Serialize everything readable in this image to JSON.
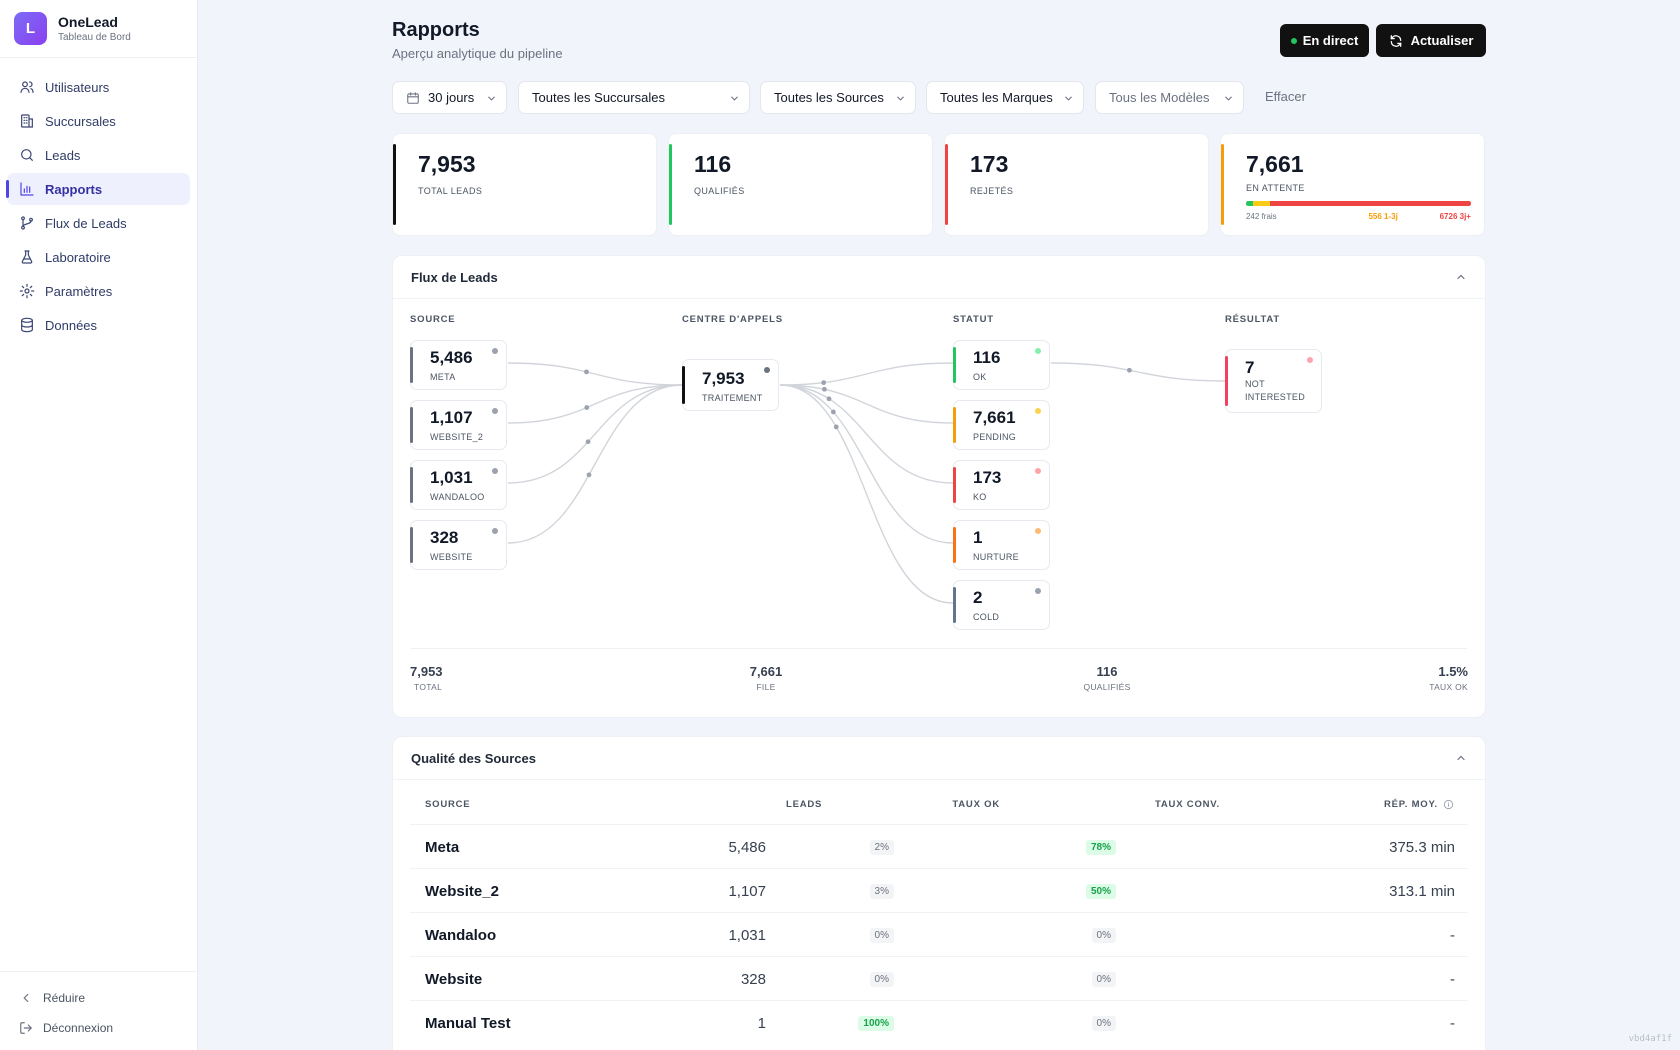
{
  "brand": {
    "initial": "L",
    "name": "OneLead",
    "subtitle": "Tableau de Bord"
  },
  "sidebar": {
    "items": [
      {
        "label": "Utilisateurs",
        "icon": "users-icon"
      },
      {
        "label": "Succursales",
        "icon": "building-icon"
      },
      {
        "label": "Leads",
        "icon": "search-icon"
      },
      {
        "label": "Rapports",
        "icon": "bar-chart-icon",
        "active": true
      },
      {
        "label": "Flux de Leads",
        "icon": "git-branch-icon"
      },
      {
        "label": "Laboratoire",
        "icon": "flask-icon"
      },
      {
        "label": "Paramètres",
        "icon": "gear-icon"
      },
      {
        "label": "Données",
        "icon": "database-icon"
      }
    ],
    "collapse_label": "Réduire",
    "logout_label": "Déconnexion"
  },
  "header": {
    "title": "Rapports",
    "subtitle": "Aperçu analytique du pipeline",
    "live_label": "En direct",
    "refresh_label": "Actualiser"
  },
  "filters": {
    "period": "30 jours",
    "branches": "Toutes les Succursales",
    "sources": "Toutes les Sources",
    "brands": "Toutes les Marques",
    "models": "Tous les Modèles",
    "clear": "Effacer"
  },
  "kpis": [
    {
      "value": "7,953",
      "label": "TOTAL LEADS",
      "color": "#111111"
    },
    {
      "value": "116",
      "label": "QUALIFIÉS",
      "color": "#22c55e"
    },
    {
      "value": "173",
      "label": "REJETÉS",
      "color": "#ef4444"
    },
    {
      "value": "7,661",
      "label": "EN ATTENTE",
      "color": "#f59e0b",
      "breakdown": {
        "fresh": "242 frais",
        "mid": "556 1-3j",
        "old": "6726 3j+",
        "fresh_value": 242,
        "mid_value": 556,
        "old_value": 6726
      }
    }
  ],
  "flow": {
    "title": "Flux de Leads",
    "columns": {
      "source": "SOURCE",
      "center": "CENTRE D'APPELS",
      "status": "STATUT",
      "result": "RÉSULTAT"
    },
    "sources": [
      {
        "value": "5,486",
        "label": "META"
      },
      {
        "value": "1,107",
        "label": "WEBSITE_2"
      },
      {
        "value": "1,031",
        "label": "WANDALOO"
      },
      {
        "value": "328",
        "label": "WEBSITE"
      }
    ],
    "center": {
      "value": "7,953",
      "label": "TRAITEMENT"
    },
    "statuses": [
      {
        "value": "116",
        "label": "OK",
        "color": "#22c55e",
        "dot": "#86efac"
      },
      {
        "value": "7,661",
        "label": "PENDING",
        "color": "#f59e0b",
        "dot": "#fcd34d"
      },
      {
        "value": "173",
        "label": "KO",
        "color": "#ef4444",
        "dot": "#fca5a5"
      },
      {
        "value": "1",
        "label": "NURTURE",
        "color": "#f97316",
        "dot": "#fdba74"
      },
      {
        "value": "2",
        "label": "COLD",
        "color": "#64748b",
        "dot": "#9ca3af"
      }
    ],
    "result": {
      "value": "7",
      "label": "NOT INTERESTED",
      "color": "#f43f5e",
      "dot": "#fda4af"
    },
    "summary": [
      {
        "value": "7,953",
        "label": "TOTAL"
      },
      {
        "value": "7,661",
        "label": "FILE"
      },
      {
        "value": "116",
        "label": "QUALIFIÉS"
      },
      {
        "value": "1.5%",
        "label": "TAUX OK"
      }
    ]
  },
  "quality": {
    "title": "Qualité des Sources",
    "headers": {
      "source": "SOURCE",
      "leads": "LEADS",
      "ok": "TAUX OK",
      "conv": "TAUX CONV.",
      "rep": "RÉP. MOY."
    },
    "rows": [
      {
        "source": "Meta",
        "leads": "5,486",
        "ok": "2%",
        "ok_green": false,
        "conv": "78%",
        "conv_green": true,
        "rep": "375.3 min"
      },
      {
        "source": "Website_2",
        "leads": "1,107",
        "ok": "3%",
        "ok_green": false,
        "conv": "50%",
        "conv_green": true,
        "rep": "313.1 min"
      },
      {
        "source": "Wandaloo",
        "leads": "1,031",
        "ok": "0%",
        "ok_green": false,
        "conv": "0%",
        "conv_green": false,
        "rep": "-"
      },
      {
        "source": "Website",
        "leads": "328",
        "ok": "0%",
        "ok_green": false,
        "conv": "0%",
        "conv_green": false,
        "rep": "-"
      },
      {
        "source": "Manual Test",
        "leads": "1",
        "ok": "100%",
        "ok_green": true,
        "conv": "0%",
        "conv_green": false,
        "rep": "-"
      }
    ]
  },
  "build_id": "vbd4af1f"
}
